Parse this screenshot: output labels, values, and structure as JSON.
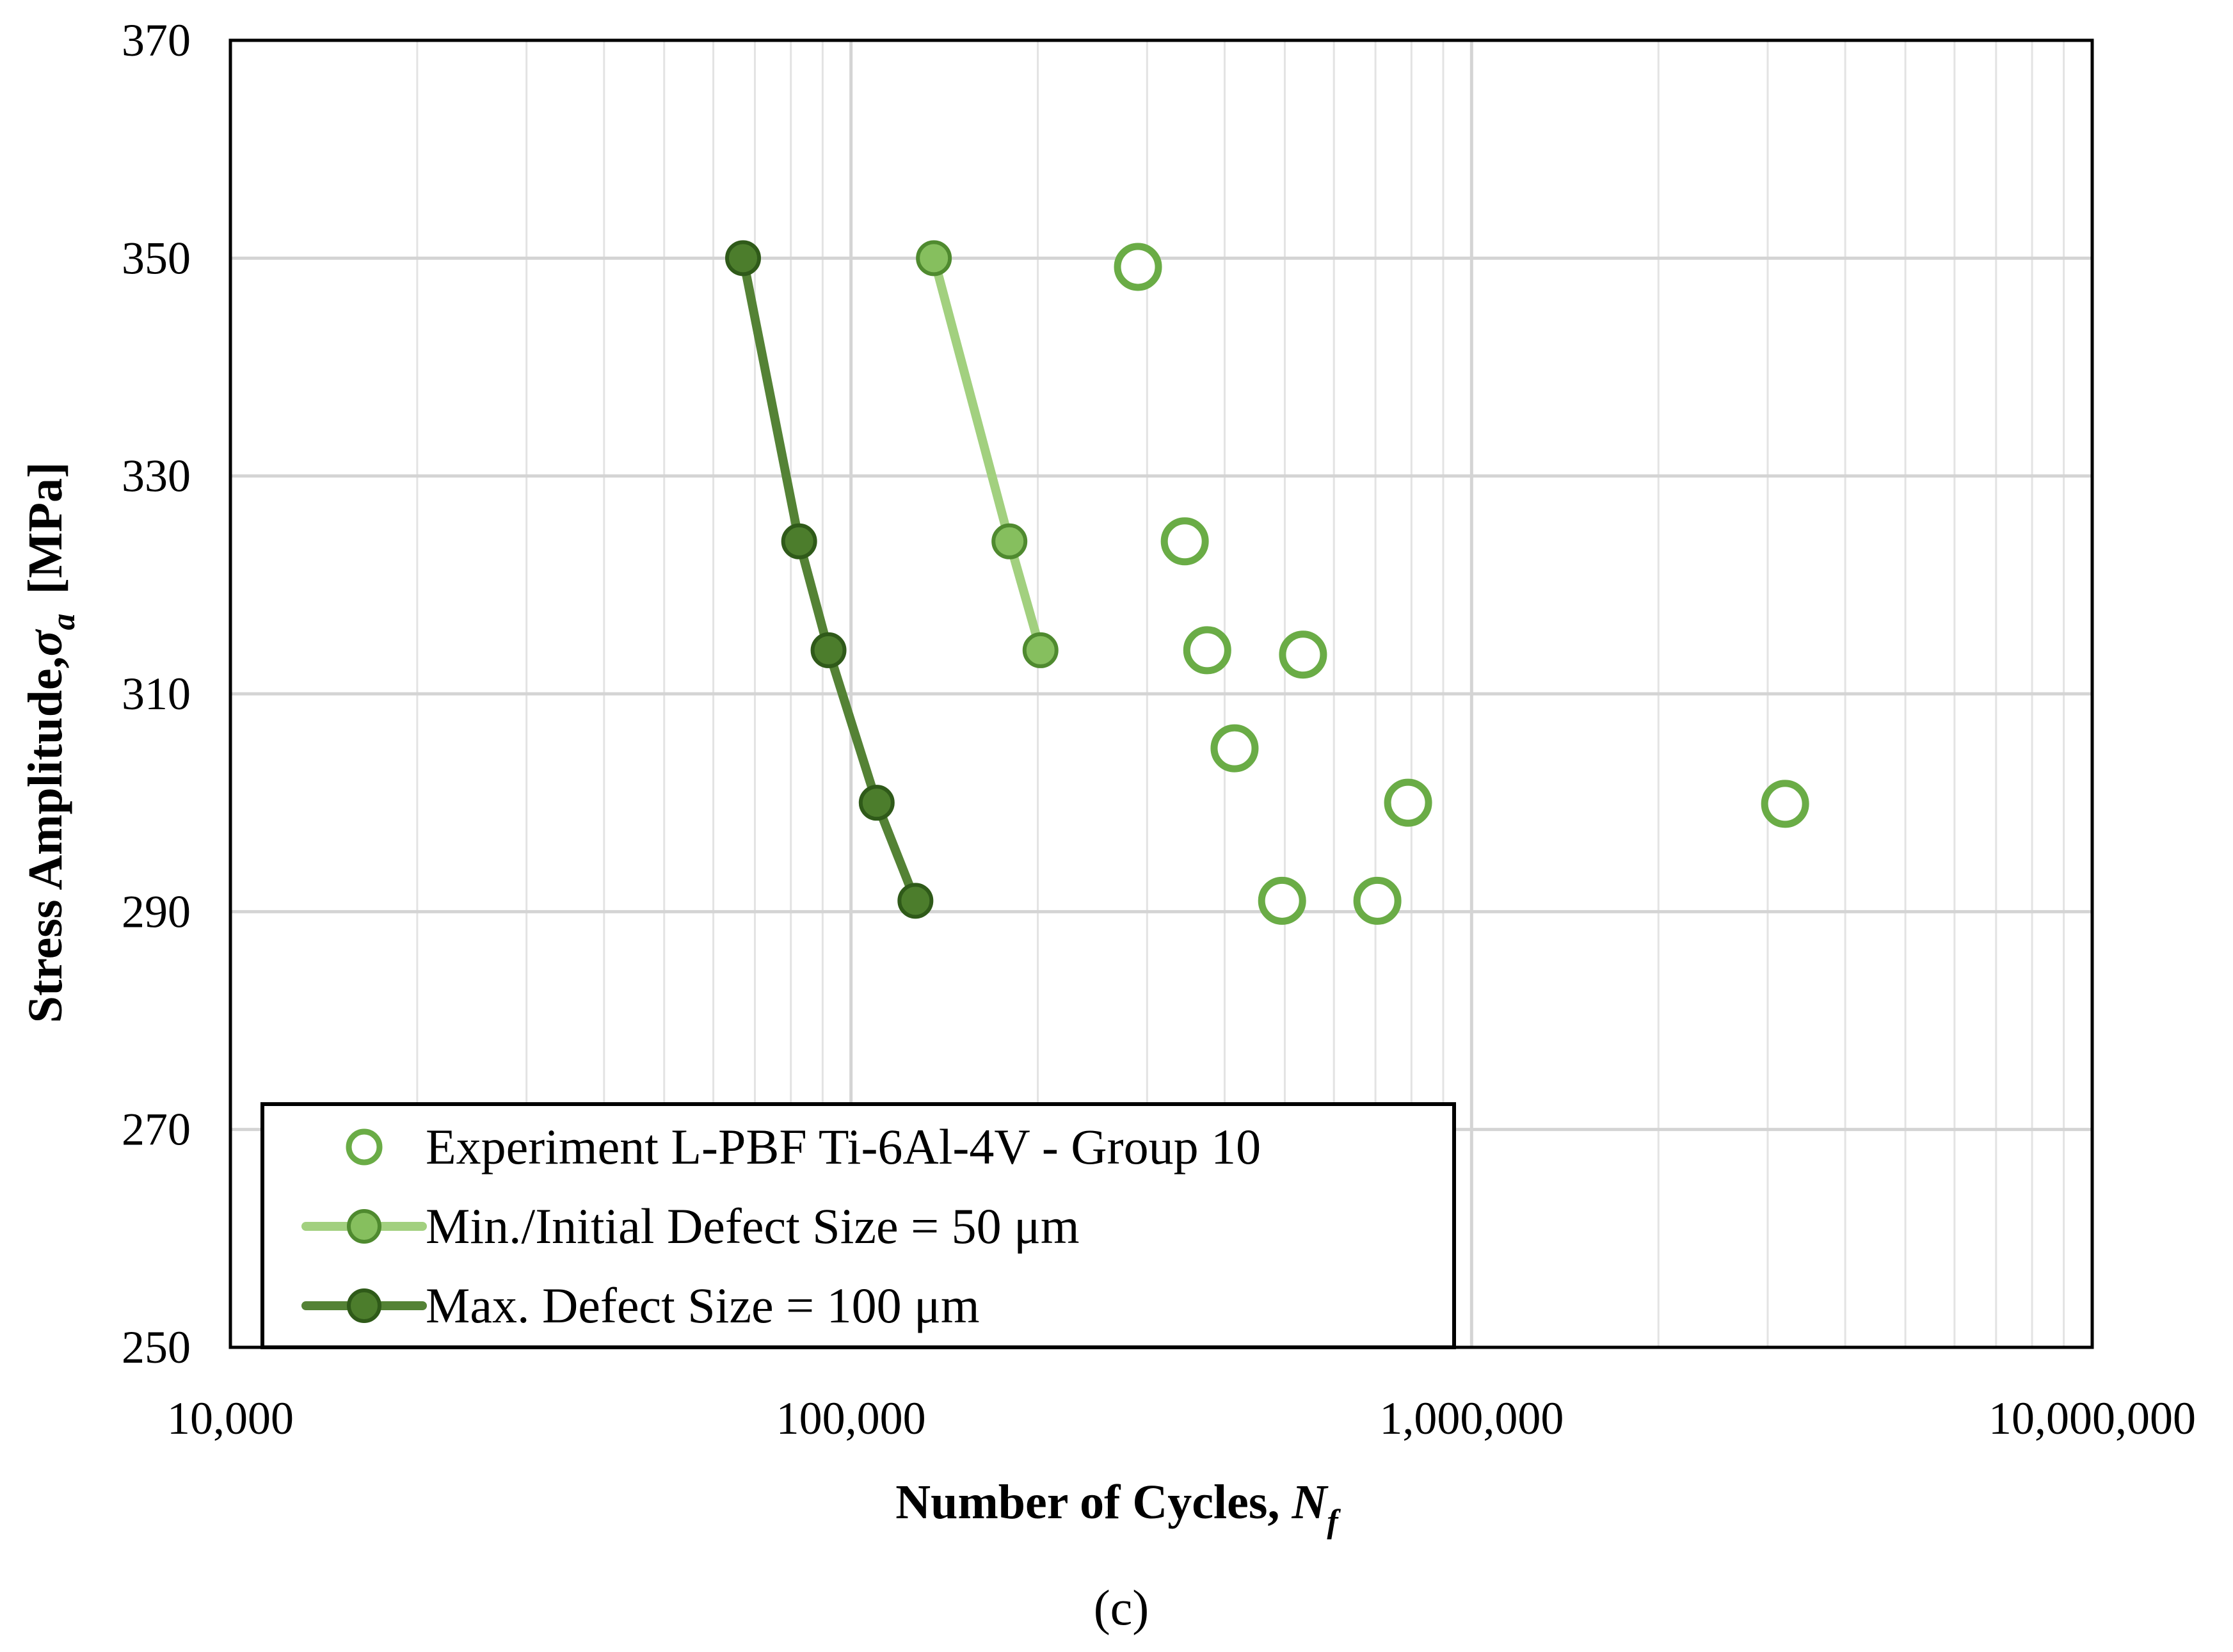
{
  "chart_data": {
    "type": "scatter",
    "title": "",
    "xlabel": "Number of Cycles, ",
    "xlabel_italic": "N",
    "xlabel_sub": "f",
    "ylabel": "Stress Amplitude,",
    "ylabel_symbol": "σ",
    "ylabel_sub": "a",
    "ylabel_unit": "[MPa]",
    "caption": "(c)",
    "x_scale": "log",
    "xlim": [
      10000,
      10000000
    ],
    "ylim": [
      250,
      370
    ],
    "x_ticks": [
      {
        "value": 10000,
        "label": "10,000"
      },
      {
        "value": 100000,
        "label": "100,000"
      },
      {
        "value": 1000000,
        "label": "1,000,000"
      },
      {
        "value": 10000000,
        "label": "10,000,000"
      }
    ],
    "y_ticks": [
      {
        "value": 250,
        "label": "250"
      },
      {
        "value": 270,
        "label": "270"
      },
      {
        "value": 290,
        "label": "290"
      },
      {
        "value": 310,
        "label": "310"
      },
      {
        "value": 330,
        "label": "330"
      },
      {
        "value": 350,
        "label": "350"
      },
      {
        "value": 370,
        "label": "370"
      }
    ],
    "grid": true,
    "legend_position": "bottom-left",
    "series": [
      {
        "name": "Experiment L-PBF Ti-6Al-4V - Group 10",
        "style": "open-marker",
        "color": "#6aac46",
        "points": [
          {
            "x": 290000,
            "y": 349.2
          },
          {
            "x": 345000,
            "y": 324
          },
          {
            "x": 375000,
            "y": 314
          },
          {
            "x": 535000,
            "y": 313.6
          },
          {
            "x": 415000,
            "y": 305
          },
          {
            "x": 790000,
            "y": 300
          },
          {
            "x": 3200000,
            "y": 299.9
          },
          {
            "x": 495000,
            "y": 291
          },
          {
            "x": 705000,
            "y": 291
          }
        ]
      },
      {
        "name": "Min./Initial Defect Size = 50 μm",
        "style": "line-marker",
        "color": "#a2d07f",
        "marker_fill": "#86bf5e",
        "marker_edge": "#4f8a2f",
        "points": [
          {
            "x": 136000,
            "y": 350
          },
          {
            "x": 180000,
            "y": 324
          },
          {
            "x": 202000,
            "y": 314
          }
        ]
      },
      {
        "name": "Max. Defect Size = 100 μm",
        "style": "line-marker",
        "color": "#548235",
        "marker_fill": "#4c7d2c",
        "marker_edge": "#2f5a19",
        "points": [
          {
            "x": 67000,
            "y": 350
          },
          {
            "x": 82500,
            "y": 324
          },
          {
            "x": 92000,
            "y": 314
          },
          {
            "x": 110000,
            "y": 300
          },
          {
            "x": 127000,
            "y": 291
          }
        ]
      }
    ]
  }
}
